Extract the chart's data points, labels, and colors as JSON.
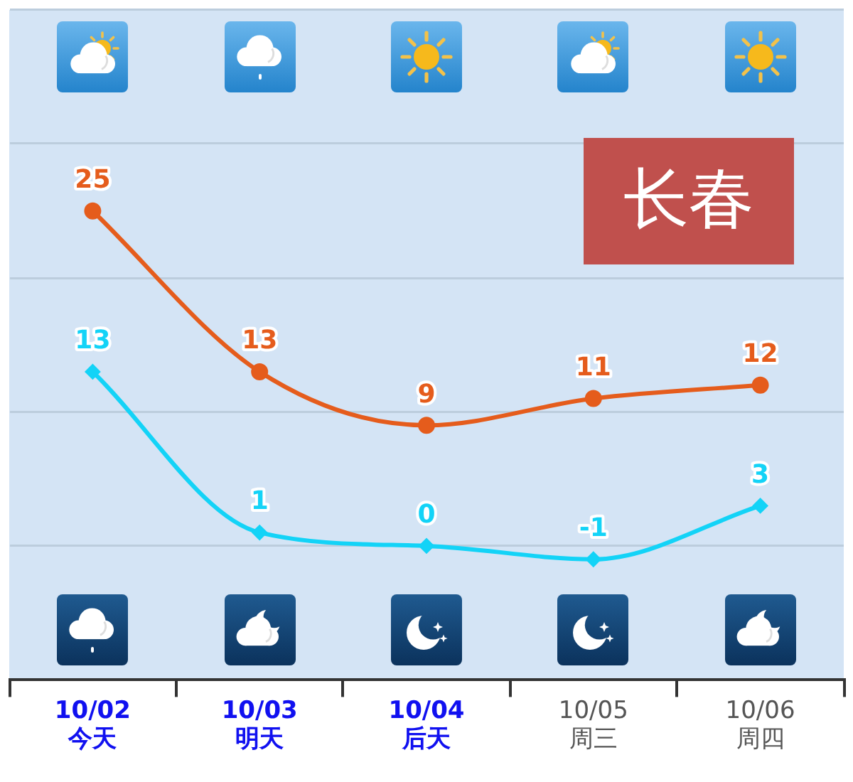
{
  "chart_data": {
    "type": "line",
    "title": "长春",
    "categories": [
      "10/02\n今天",
      "10/03\n明天",
      "10/04\n后天",
      "10/05\n周三",
      "10/06\n周四"
    ],
    "series": [
      {
        "color": "#e55c1c",
        "marker": "circle",
        "values": [
          25,
          13,
          9,
          11,
          12
        ]
      },
      {
        "color": "#13d3f7",
        "marker": "diamond",
        "values": [
          13,
          1,
          0,
          -1,
          3
        ]
      }
    ],
    "ylim": [
      -10,
      40
    ],
    "yticks": [
      {
        "value": -10,
        "label": null
      },
      {
        "value": 0,
        "label": null
      },
      {
        "value": 10,
        "label": null
      },
      {
        "value": 20,
        "label": null
      },
      {
        "value": 30,
        "label": null
      },
      {
        "value": 40,
        "label": null
      }
    ],
    "grid": "y",
    "tick_labels": "x",
    "data_labels": true
  }
}
